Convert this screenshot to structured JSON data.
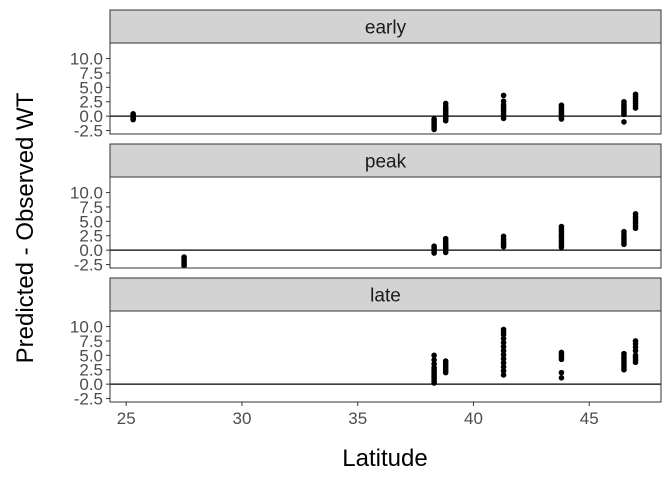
{
  "chart_data": {
    "type": "scatter",
    "xlabel": "Latitude",
    "ylabel": "Predicted - Observed WT",
    "x_ticks": [
      25,
      30,
      35,
      40,
      45
    ],
    "y_ticks": [
      -2.5,
      0.0,
      2.5,
      5.0,
      7.5,
      10.0
    ],
    "y_tick_labels": [
      "-2.5",
      "0.0",
      "2.5",
      "5.0",
      "7.5",
      "10.0"
    ],
    "xlim": [
      24.3,
      48.1
    ],
    "ylim": [
      -3.1,
      12.7
    ],
    "reference_line_y": 0,
    "grid": false,
    "facets": [
      {
        "label": "early",
        "points": [
          [
            25.3,
            -0.6
          ],
          [
            25.3,
            -0.4
          ],
          [
            25.3,
            -0.2
          ],
          [
            25.3,
            0.0
          ],
          [
            25.3,
            0.2
          ],
          [
            25.3,
            0.4
          ],
          [
            38.3,
            -2.3
          ],
          [
            38.3,
            -2.0
          ],
          [
            38.3,
            -1.7
          ],
          [
            38.3,
            -1.4
          ],
          [
            38.3,
            -1.1
          ],
          [
            38.3,
            -0.8
          ],
          [
            38.3,
            -0.5
          ],
          [
            38.8,
            -0.8
          ],
          [
            38.8,
            -0.5
          ],
          [
            38.8,
            -0.2
          ],
          [
            38.8,
            0.1
          ],
          [
            38.8,
            0.4
          ],
          [
            38.8,
            0.7
          ],
          [
            38.8,
            1.0
          ],
          [
            38.8,
            1.3
          ],
          [
            38.8,
            1.7
          ],
          [
            38.8,
            2.2
          ],
          [
            41.3,
            -0.4
          ],
          [
            41.3,
            0.0
          ],
          [
            41.3,
            0.4
          ],
          [
            41.3,
            0.8
          ],
          [
            41.3,
            1.2
          ],
          [
            41.3,
            1.6
          ],
          [
            41.3,
            2.0
          ],
          [
            41.3,
            2.6
          ],
          [
            41.3,
            3.6
          ],
          [
            43.8,
            -0.5
          ],
          [
            43.8,
            -0.2
          ],
          [
            43.8,
            0.1
          ],
          [
            43.8,
            0.4
          ],
          [
            43.8,
            0.7
          ],
          [
            43.8,
            1.0
          ],
          [
            43.8,
            1.3
          ],
          [
            43.8,
            1.6
          ],
          [
            43.8,
            1.9
          ],
          [
            46.5,
            -1.0
          ],
          [
            46.5,
            0.3
          ],
          [
            46.5,
            0.6
          ],
          [
            46.5,
            0.9
          ],
          [
            46.5,
            1.2
          ],
          [
            46.5,
            1.5
          ],
          [
            46.5,
            1.8
          ],
          [
            46.5,
            2.1
          ],
          [
            46.5,
            2.5
          ],
          [
            47.0,
            1.4
          ],
          [
            47.0,
            1.8
          ],
          [
            47.0,
            2.2
          ],
          [
            47.0,
            2.6
          ],
          [
            47.0,
            3.0
          ],
          [
            47.0,
            3.4
          ],
          [
            47.0,
            3.8
          ]
        ]
      },
      {
        "label": "peak",
        "points": [
          [
            27.5,
            -2.7
          ],
          [
            27.5,
            -2.4
          ],
          [
            27.5,
            -2.1
          ],
          [
            27.5,
            -1.8
          ],
          [
            27.5,
            -1.5
          ],
          [
            27.5,
            -1.2
          ],
          [
            38.3,
            -0.5
          ],
          [
            38.3,
            -0.2
          ],
          [
            38.3,
            0.1
          ],
          [
            38.3,
            0.4
          ],
          [
            38.3,
            0.7
          ],
          [
            38.8,
            -0.4
          ],
          [
            38.8,
            0.0
          ],
          [
            38.8,
            0.3
          ],
          [
            38.8,
            0.6
          ],
          [
            38.8,
            0.9
          ],
          [
            38.8,
            1.2
          ],
          [
            38.8,
            1.6
          ],
          [
            38.8,
            2.0
          ],
          [
            41.3,
            0.6
          ],
          [
            41.3,
            0.9
          ],
          [
            41.3,
            1.2
          ],
          [
            41.3,
            1.5
          ],
          [
            41.3,
            1.9
          ],
          [
            41.3,
            2.4
          ],
          [
            43.8,
            0.5
          ],
          [
            43.8,
            0.9
          ],
          [
            43.8,
            1.3
          ],
          [
            43.8,
            1.7
          ],
          [
            43.8,
            2.1
          ],
          [
            43.8,
            2.5
          ],
          [
            43.8,
            2.9
          ],
          [
            43.8,
            3.3
          ],
          [
            43.8,
            3.7
          ],
          [
            43.8,
            4.1
          ],
          [
            46.5,
            1.0
          ],
          [
            46.5,
            1.4
          ],
          [
            46.5,
            1.8
          ],
          [
            46.5,
            2.2
          ],
          [
            46.5,
            2.7
          ],
          [
            46.5,
            3.2
          ],
          [
            47.0,
            3.8
          ],
          [
            47.0,
            4.2
          ],
          [
            47.0,
            4.6
          ],
          [
            47.0,
            5.0
          ],
          [
            47.0,
            5.4
          ],
          [
            47.0,
            5.8
          ],
          [
            47.0,
            6.3
          ]
        ]
      },
      {
        "label": "late",
        "points": [
          [
            38.3,
            0.2
          ],
          [
            38.3,
            0.5
          ],
          [
            38.3,
            0.8
          ],
          [
            38.3,
            1.1
          ],
          [
            38.3,
            1.4
          ],
          [
            38.3,
            1.7
          ],
          [
            38.3,
            2.0
          ],
          [
            38.3,
            2.3
          ],
          [
            38.3,
            2.6
          ],
          [
            38.3,
            2.9
          ],
          [
            38.3,
            3.5
          ],
          [
            38.3,
            4.2
          ],
          [
            38.3,
            5.0
          ],
          [
            38.8,
            2.0
          ],
          [
            38.8,
            2.4
          ],
          [
            38.8,
            2.8
          ],
          [
            38.8,
            3.2
          ],
          [
            38.8,
            3.6
          ],
          [
            38.8,
            4.0
          ],
          [
            41.3,
            1.6
          ],
          [
            41.3,
            2.3
          ],
          [
            41.3,
            3.0
          ],
          [
            41.3,
            3.7
          ],
          [
            41.3,
            4.4
          ],
          [
            41.3,
            5.1
          ],
          [
            41.3,
            5.8
          ],
          [
            41.3,
            6.5
          ],
          [
            41.3,
            7.2
          ],
          [
            41.3,
            7.9
          ],
          [
            41.3,
            8.6
          ],
          [
            41.3,
            9.1
          ],
          [
            41.3,
            9.5
          ],
          [
            43.8,
            1.1
          ],
          [
            43.8,
            2.0
          ],
          [
            43.8,
            4.3
          ],
          [
            43.8,
            4.7
          ],
          [
            43.8,
            5.1
          ],
          [
            43.8,
            5.5
          ],
          [
            46.5,
            2.5
          ],
          [
            46.5,
            2.9
          ],
          [
            46.5,
            3.3
          ],
          [
            46.5,
            3.7
          ],
          [
            46.5,
            4.1
          ],
          [
            46.5,
            4.5
          ],
          [
            46.5,
            4.9
          ],
          [
            46.5,
            5.3
          ],
          [
            47.0,
            3.8
          ],
          [
            47.0,
            4.2
          ],
          [
            47.0,
            4.6
          ],
          [
            47.0,
            5.0
          ],
          [
            47.0,
            5.8
          ],
          [
            47.0,
            6.4
          ],
          [
            47.0,
            7.0
          ],
          [
            47.0,
            7.5
          ]
        ]
      }
    ]
  },
  "colors": {
    "strip_fill": "#d3d3d3",
    "frame": "#333333",
    "point": "#000000",
    "tick_text": "#4d4d4d",
    "axis_title": "#000000"
  }
}
